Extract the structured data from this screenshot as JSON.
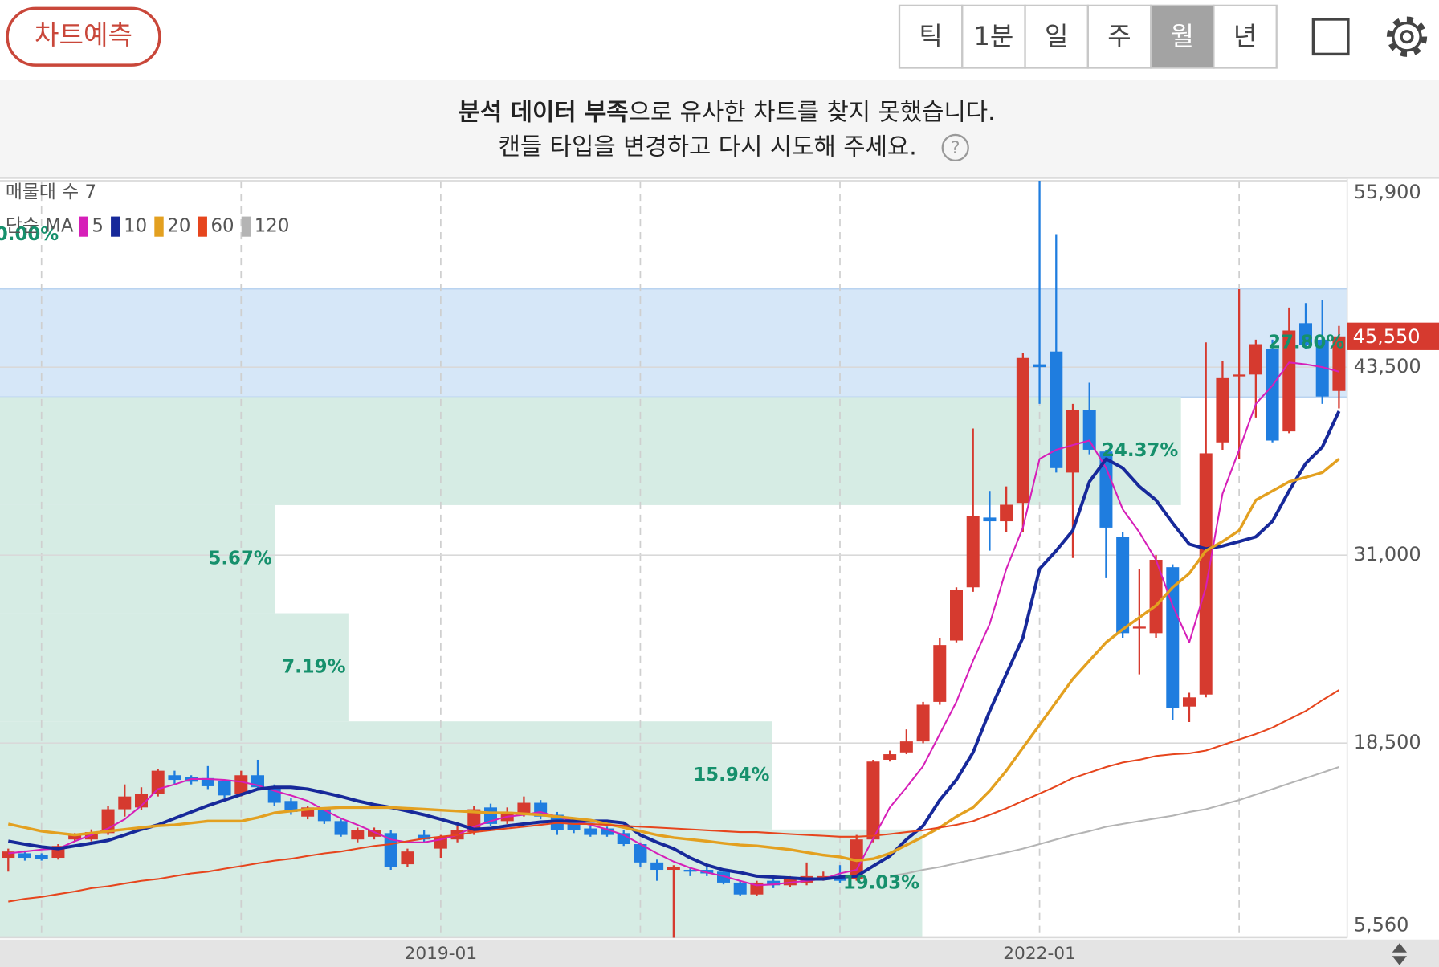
{
  "header": {
    "predict_button": "차트예측",
    "tabs": [
      "틱",
      "1분",
      "일",
      "주",
      "월",
      "년"
    ],
    "selected_tab": "월"
  },
  "notice": {
    "bold": "분석 데이터 부족",
    "line1_rest": "으로 유사한 차트를 찾지 못했습니다.",
    "line2": "캔들 타입을 변경하고 다시 시도해 주세요.",
    "help_icon": "?"
  },
  "chart_data": {
    "type": "candlestick",
    "categories": [
      null,
      null,
      null,
      null,
      null,
      null,
      null,
      null,
      null,
      null,
      null,
      null,
      null,
      null,
      null,
      null,
      null,
      null,
      null,
      null,
      null,
      null,
      null,
      null,
      null,
      null,
      "2019-01",
      null,
      null,
      null,
      null,
      null,
      null,
      null,
      null,
      null,
      null,
      null,
      null,
      null,
      null,
      null,
      null,
      null,
      null,
      null,
      null,
      null,
      null,
      null,
      null,
      null,
      null,
      null,
      null,
      null,
      null,
      null,
      null,
      null,
      null,
      null,
      "2022-01",
      null,
      null,
      null,
      null,
      null,
      null,
      null,
      null,
      null,
      null,
      null,
      null,
      null,
      null,
      null,
      null,
      null,
      null
    ],
    "open": [
      10870,
      11170,
      11050,
      10870,
      12090,
      12090,
      12510,
      14100,
      14220,
      15140,
      16360,
      16240,
      16170,
      15990,
      15140,
      16360,
      15560,
      14650,
      13610,
      14100,
      13310,
      12090,
      12270,
      12510,
      10440,
      12390,
      11480,
      12090,
      12580,
      14220,
      13310,
      13730,
      14530,
      13730,
      13310,
      12820,
      12820,
      12510,
      11780,
      10560,
      10070,
      10070,
      10070,
      9950,
      9220,
      8430,
      9340,
      9040,
      9220,
      9460,
      9650,
      9460,
      12090,
      17390,
      17880,
      18610,
      21240,
      25320,
      28860,
      33500,
      33250,
      34470,
      43690,
      44540,
      36490,
      40640,
      37890,
      32220,
      26120,
      25810,
      30200,
      20930,
      21730,
      38500,
      42890,
      43010,
      44720,
      39230,
      46430,
      45330,
      41920
    ],
    "high": [
      11480,
      11360,
      11170,
      11780,
      12510,
      12760,
      14340,
      15750,
      15560,
      16780,
      16660,
      16360,
      16970,
      16050,
      16660,
      17390,
      15750,
      14830,
      14340,
      14220,
      13430,
      12880,
      12880,
      12700,
      11480,
      12700,
      12390,
      13000,
      14340,
      14470,
      14220,
      14950,
      14710,
      13920,
      13490,
      13000,
      12940,
      12700,
      11900,
      10750,
      10380,
      10200,
      10260,
      10070,
      9340,
      9340,
      9530,
      9650,
      10560,
      9950,
      10380,
      12390,
      17390,
      18000,
      19410,
      21240,
      25510,
      28860,
      39420,
      35270,
      35570,
      44420,
      55900,
      52350,
      41060,
      42470,
      38010,
      32520,
      30080,
      31000,
      30390,
      21850,
      45150,
      43930,
      48690,
      45330,
      45330,
      47470,
      47770,
      47960,
      46250
    ],
    "low": [
      9950,
      10680,
      10680,
      10750,
      11970,
      11960,
      12390,
      13610,
      14040,
      14950,
      15750,
      15750,
      15440,
      14830,
      14950,
      15440,
      14340,
      13730,
      13430,
      13120,
      12270,
      11900,
      12090,
      10070,
      10260,
      11900,
      10870,
      11900,
      12390,
      13000,
      13120,
      13610,
      13430,
      12390,
      12510,
      12270,
      12270,
      11660,
      10260,
      9340,
      5560,
      9650,
      9650,
      9100,
      8310,
      8310,
      8850,
      8920,
      9040,
      9340,
      9220,
      9340,
      11900,
      17270,
      17760,
      18490,
      21050,
      25200,
      28560,
      31300,
      32520,
      32520,
      41060,
      36490,
      30810,
      37710,
      29470,
      25510,
      23070,
      25510,
      20020,
      19900,
      21540,
      38010,
      37400,
      40150,
      38500,
      39110,
      44720,
      41060,
      40760
    ],
    "close": [
      11290,
      10870,
      10810,
      11660,
      12390,
      12580,
      14100,
      14950,
      15140,
      16660,
      16050,
      15930,
      15630,
      15020,
      16360,
      15560,
      14530,
      13920,
      14220,
      13310,
      12390,
      12700,
      12700,
      10260,
      11290,
      12090,
      12270,
      12700,
      14100,
      13120,
      13920,
      14530,
      13610,
      12700,
      12700,
      12390,
      12390,
      11780,
      10560,
      10070,
      10260,
      9950,
      9830,
      9220,
      8430,
      9220,
      9040,
      9460,
      9650,
      9650,
      9340,
      12090,
      17270,
      17760,
      18610,
      21050,
      25020,
      28680,
      33620,
      33250,
      34350,
      44110,
      43500,
      36790,
      40640,
      38010,
      32830,
      25810,
      26240,
      30690,
      20810,
      21540,
      37770,
      42770,
      43010,
      45030,
      38620,
      45940,
      44970,
      41550,
      45550
    ],
    "up_color": "#d63a2f",
    "down_color": "#1f7ddf",
    "ma_label": "단순 MA",
    "series": [
      {
        "name": "5",
        "color": "#d61fb8",
        "values": [
          11170,
          11290,
          11420,
          11480,
          11970,
          12390,
          12820,
          13430,
          14340,
          15440,
          15750,
          16110,
          16110,
          16050,
          15930,
          15690,
          15320,
          15020,
          14650,
          14040,
          13490,
          13060,
          12580,
          12090,
          11900,
          11900,
          12090,
          12390,
          12940,
          13310,
          13610,
          13730,
          13920,
          13610,
          13310,
          13060,
          12760,
          12390,
          11780,
          11170,
          10620,
          10200,
          9890,
          9650,
          9340,
          9040,
          9100,
          9220,
          9340,
          9460,
          9830,
          10070,
          12150,
          14220,
          15560,
          16970,
          19100,
          21240,
          23980,
          26420,
          30080,
          32830,
          37400,
          38010,
          38320,
          38620,
          36790,
          34050,
          32520,
          30690,
          27640,
          25200,
          28860,
          35080,
          38010,
          41060,
          42280,
          43810,
          43690,
          43500,
          43200
        ]
      },
      {
        "name": "10",
        "color": "#17299a",
        "values": [
          11970,
          11780,
          11600,
          11480,
          11660,
          11840,
          12030,
          12390,
          12760,
          13060,
          13490,
          13920,
          14340,
          14710,
          15080,
          15440,
          15560,
          15560,
          15440,
          15200,
          14950,
          14650,
          14410,
          14220,
          13980,
          13730,
          13430,
          13120,
          12760,
          12820,
          13000,
          13120,
          13250,
          13310,
          13310,
          13310,
          13310,
          13190,
          12390,
          11900,
          11480,
          10870,
          10380,
          10070,
          9890,
          9650,
          9590,
          9530,
          9460,
          9460,
          9590,
          9650,
          10320,
          10990,
          12090,
          13000,
          14710,
          16050,
          17880,
          20630,
          23070,
          25510,
          30080,
          31300,
          32640,
          35880,
          37400,
          36790,
          35570,
          34660,
          33130,
          31730,
          31420,
          31610,
          31910,
          32220,
          33250,
          35270,
          37100,
          38200,
          40570
        ]
      },
      {
        "name": "20",
        "color": "#e3a020",
        "values": [
          13120,
          12880,
          12640,
          12510,
          12390,
          12510,
          12640,
          12760,
          12880,
          13000,
          13060,
          13190,
          13310,
          13310,
          13310,
          13550,
          13860,
          13980,
          14100,
          14160,
          14220,
          14220,
          14220,
          14220,
          14160,
          14100,
          14040,
          13980,
          13920,
          13860,
          13860,
          13800,
          13730,
          13610,
          13490,
          13370,
          13120,
          12880,
          12640,
          12390,
          12210,
          12090,
          11970,
          11840,
          11720,
          11660,
          11540,
          11420,
          11230,
          11050,
          10930,
          10680,
          10810,
          11170,
          11720,
          12270,
          12880,
          13610,
          14220,
          15320,
          16660,
          18190,
          19710,
          21240,
          22760,
          23980,
          25200,
          26060,
          26850,
          27640,
          28860,
          29780,
          31300,
          31910,
          32640,
          34660,
          35270,
          35880,
          36180,
          36490,
          37400
        ]
      },
      {
        "name": "60",
        "color": "#e6451d",
        "values": [
          7960,
          8140,
          8270,
          8450,
          8630,
          8850,
          8980,
          9160,
          9340,
          9460,
          9650,
          9830,
          9950,
          10140,
          10320,
          10500,
          10680,
          10810,
          10990,
          11170,
          11290,
          11480,
          11660,
          11780,
          11970,
          12150,
          12270,
          12390,
          12580,
          12700,
          12820,
          12940,
          13060,
          13190,
          13120,
          13120,
          13060,
          13000,
          12940,
          12880,
          12820,
          12760,
          12700,
          12640,
          12580,
          12580,
          12510,
          12450,
          12390,
          12330,
          12270,
          12270,
          12330,
          12450,
          12580,
          12700,
          12880,
          13060,
          13310,
          13730,
          14160,
          14650,
          15140,
          15630,
          16170,
          16540,
          16910,
          17210,
          17390,
          17640,
          17760,
          17820,
          18000,
          18370,
          18740,
          19100,
          19530,
          20080,
          20630,
          21360,
          22030
        ]
      },
      {
        "name": "120",
        "color": "#b4b4b4",
        "values": [
          null,
          null,
          null,
          null,
          null,
          null,
          null,
          null,
          null,
          null,
          null,
          null,
          null,
          null,
          null,
          null,
          null,
          null,
          null,
          null,
          null,
          null,
          null,
          null,
          null,
          null,
          null,
          null,
          null,
          null,
          null,
          null,
          null,
          null,
          null,
          null,
          null,
          null,
          null,
          null,
          null,
          null,
          null,
          null,
          null,
          null,
          null,
          null,
          null,
          null,
          null,
          null,
          null,
          9650,
          9830,
          10070,
          10260,
          10500,
          10750,
          10990,
          11230,
          11480,
          11780,
          12090,
          12390,
          12640,
          12940,
          13120,
          13310,
          13490,
          13670,
          13920,
          14100,
          14410,
          14710,
          15080,
          15440,
          15810,
          16170,
          16540,
          16910
        ]
      }
    ],
    "volume_profile": {
      "label": "매물대 수 7",
      "values": [
        0,
        27.8,
        24.37,
        5.67,
        7.19,
        15.94,
        19.03
      ],
      "value_labels": [
        "0.00%",
        "27.80%",
        "24.37%",
        "5.67%",
        "7.19%",
        "15.94%",
        "19.03%"
      ],
      "color": "#d6ece4",
      "highlight_color": "#d6e7f8",
      "label_color": "#16906c"
    },
    "current_price": {
      "value": 45550,
      "label": "45,550"
    },
    "ylim": [
      5560,
      55900
    ],
    "yticks": [
      {
        "value": 55900,
        "label": "55,900"
      },
      {
        "value": 43500,
        "label": "43,500"
      },
      {
        "value": 31000,
        "label": "31,000"
      },
      {
        "value": 18500,
        "label": "18,500"
      },
      {
        "value": 5560,
        "label": "5,560"
      }
    ],
    "grid": true
  }
}
